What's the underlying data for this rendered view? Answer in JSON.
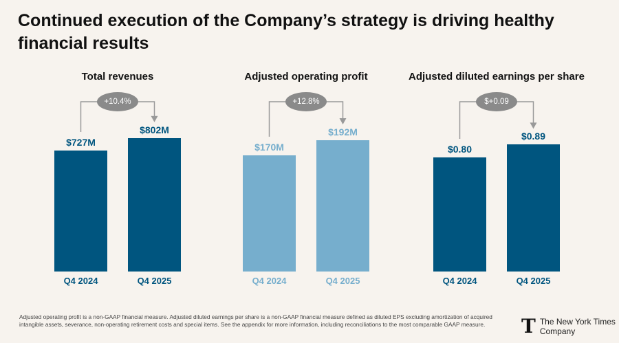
{
  "title": "Continued execution of the Company’s strategy is driving healthy financial results",
  "chart_data": [
    {
      "type": "bar",
      "title": "Total revenues",
      "categories": [
        "Q4 2024",
        "Q4 2025"
      ],
      "values": [
        727,
        802
      ],
      "value_labels": [
        "$727M",
        "$802M"
      ],
      "change_label": "+10.4%",
      "color": "#00557f",
      "ylim": [
        0,
        826
      ]
    },
    {
      "type": "bar",
      "title": "Adjusted operating profit",
      "categories": [
        "Q4 2024",
        "Q4 2025"
      ],
      "values": [
        170,
        192
      ],
      "value_labels": [
        "$170M",
        "$192M"
      ],
      "change_label": "+12.8%",
      "color": "#76aecd",
      "ylim": [
        0,
        201
      ]
    },
    {
      "type": "bar",
      "title": "Adjusted diluted earnings per share",
      "categories": [
        "Q4 2024",
        "Q4 2025"
      ],
      "values": [
        0.8,
        0.89
      ],
      "value_labels": [
        "$0.80",
        "$0.89"
      ],
      "change_label": "$+0.09",
      "color": "#00557f",
      "ylim": [
        0,
        0.964
      ]
    }
  ],
  "footnote": "Adjusted operating profit is a non-GAAP financial measure. Adjusted diluted earnings per share is a non-GAAP financial measure defined as diluted EPS excluding amortization of acquired intangible assets, severance, non-operating retirement costs and special items. See the appendix for more information, including reconciliations to the most comparable GAAP measure.",
  "logo": {
    "mark": "T",
    "line1": "The New York Times",
    "line2": "Company"
  }
}
